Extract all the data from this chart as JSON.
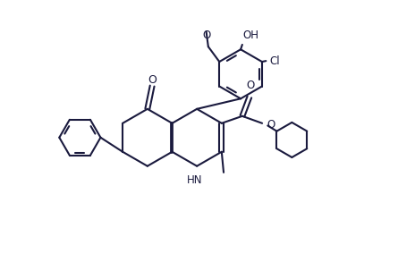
{
  "background_color": "#ffffff",
  "line_color": "#1a1a3e",
  "line_width": 1.5,
  "font_size": 8.5,
  "figsize": [
    4.45,
    3.12
  ],
  "dpi": 100,
  "xlim": [
    0,
    9
  ],
  "ylim": [
    0,
    7
  ]
}
